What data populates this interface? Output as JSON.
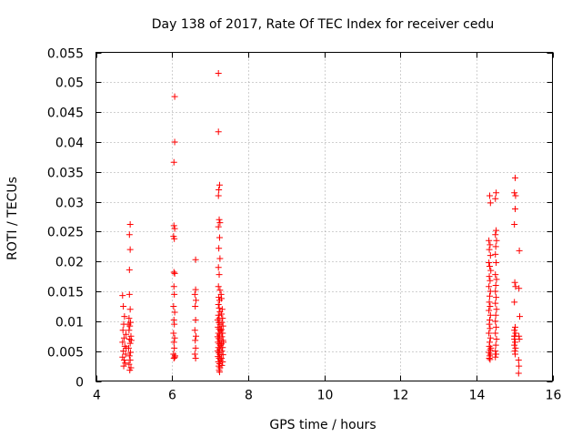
{
  "chart_data": {
    "type": "scatter",
    "title": "Day 138 of 2017, Rate Of TEC Index for receiver cedu",
    "xlabel": "GPS time / hours",
    "ylabel": "ROTI / TECUs",
    "xlim": [
      4,
      16
    ],
    "ylim": [
      0,
      0.055
    ],
    "xticks": [
      4,
      6,
      8,
      10,
      12,
      14,
      16
    ],
    "yticks": [
      0,
      0.005,
      0.01,
      0.015,
      0.02,
      0.025,
      0.03,
      0.035,
      0.04,
      0.045,
      0.05,
      0.055
    ],
    "xtick_labels": [
      "4",
      "6",
      "8",
      "10",
      "12",
      "14",
      "16"
    ],
    "ytick_labels": [
      "0",
      "0.005",
      "0.01",
      "0.015",
      "0.02",
      "0.025",
      "0.03",
      "0.035",
      "0.04",
      "0.045",
      "0.05",
      "0.055"
    ],
    "grid": true,
    "marker": "+",
    "color": "#ff0000",
    "series": [
      {
        "name": "ROTI",
        "points": [
          [
            4.7,
            0.0143
          ],
          [
            4.72,
            0.0125
          ],
          [
            4.75,
            0.0108
          ],
          [
            4.73,
            0.0095
          ],
          [
            4.71,
            0.0085
          ],
          [
            4.74,
            0.0072
          ],
          [
            4.7,
            0.0065
          ],
          [
            4.76,
            0.0058
          ],
          [
            4.72,
            0.005
          ],
          [
            4.78,
            0.0045
          ],
          [
            4.7,
            0.004
          ],
          [
            4.74,
            0.0035
          ],
          [
            4.77,
            0.003
          ],
          [
            4.73,
            0.0025
          ],
          [
            4.8,
            0.0055
          ],
          [
            4.79,
            0.0078
          ],
          [
            4.9,
            0.0262
          ],
          [
            4.88,
            0.0245
          ],
          [
            4.9,
            0.022
          ],
          [
            4.88,
            0.0186
          ],
          [
            4.88,
            0.0145
          ],
          [
            4.9,
            0.012
          ],
          [
            4.87,
            0.0105
          ],
          [
            4.91,
            0.0098
          ],
          [
            4.89,
            0.0092
          ],
          [
            4.87,
            0.0085
          ],
          [
            4.92,
            0.0075
          ],
          [
            4.88,
            0.007
          ],
          [
            4.9,
            0.0063
          ],
          [
            4.86,
            0.0055
          ],
          [
            4.91,
            0.0048
          ],
          [
            4.88,
            0.0042
          ],
          [
            4.9,
            0.0035
          ],
          [
            4.87,
            0.0028
          ],
          [
            4.92,
            0.0022
          ],
          [
            4.89,
            0.0018
          ],
          [
            4.85,
            0.0095
          ],
          [
            4.93,
            0.0068
          ],
          [
            6.07,
            0.0476
          ],
          [
            6.07,
            0.04
          ],
          [
            6.05,
            0.0366
          ],
          [
            6.05,
            0.026
          ],
          [
            6.07,
            0.0255
          ],
          [
            6.04,
            0.0242
          ],
          [
            6.06,
            0.0238
          ],
          [
            6.05,
            0.0182
          ],
          [
            6.07,
            0.018
          ],
          [
            6.05,
            0.0158
          ],
          [
            6.06,
            0.0145
          ],
          [
            6.04,
            0.0125
          ],
          [
            6.07,
            0.0115
          ],
          [
            6.05,
            0.0102
          ],
          [
            6.06,
            0.0095
          ],
          [
            6.04,
            0.008
          ],
          [
            6.07,
            0.0072
          ],
          [
            6.05,
            0.0065
          ],
          [
            6.06,
            0.0055
          ],
          [
            6.04,
            0.0045
          ],
          [
            6.07,
            0.004
          ],
          [
            6.05,
            0.0038
          ],
          [
            6.08,
            0.0042
          ],
          [
            6.62,
            0.0203
          ],
          [
            6.62,
            0.0153
          ],
          [
            6.6,
            0.0145
          ],
          [
            6.63,
            0.0135
          ],
          [
            6.61,
            0.0125
          ],
          [
            6.62,
            0.0102
          ],
          [
            6.6,
            0.0085
          ],
          [
            6.63,
            0.0075
          ],
          [
            6.61,
            0.0068
          ],
          [
            6.62,
            0.0055
          ],
          [
            6.6,
            0.0045
          ],
          [
            6.62,
            0.0038
          ],
          [
            7.22,
            0.0515
          ],
          [
            7.22,
            0.0417
          ],
          [
            7.25,
            0.0328
          ],
          [
            7.23,
            0.032
          ],
          [
            7.22,
            0.031
          ],
          [
            7.24,
            0.027
          ],
          [
            7.26,
            0.0265
          ],
          [
            7.22,
            0.0258
          ],
          [
            7.25,
            0.024
          ],
          [
            7.23,
            0.0222
          ],
          [
            7.26,
            0.0205
          ],
          [
            7.22,
            0.019
          ],
          [
            7.24,
            0.0178
          ],
          [
            7.22,
            0.0158
          ],
          [
            7.26,
            0.0152
          ],
          [
            7.23,
            0.014
          ],
          [
            7.25,
            0.0135
          ],
          [
            7.22,
            0.0128
          ],
          [
            7.24,
            0.0122
          ],
          [
            7.26,
            0.0116
          ],
          [
            7.22,
            0.011
          ],
          [
            7.24,
            0.0105
          ],
          [
            7.2,
            0.0102
          ],
          [
            7.23,
            0.0098
          ],
          [
            7.26,
            0.0095
          ],
          [
            7.21,
            0.009
          ],
          [
            7.24,
            0.0087
          ],
          [
            7.27,
            0.0084
          ],
          [
            7.22,
            0.008
          ],
          [
            7.25,
            0.0077
          ],
          [
            7.2,
            0.0074
          ],
          [
            7.23,
            0.0071
          ],
          [
            7.26,
            0.0068
          ],
          [
            7.21,
            0.0065
          ],
          [
            7.24,
            0.0062
          ],
          [
            7.27,
            0.0059
          ],
          [
            7.22,
            0.0056
          ],
          [
            7.25,
            0.0053
          ],
          [
            7.2,
            0.005
          ],
          [
            7.23,
            0.0047
          ],
          [
            7.26,
            0.0044
          ],
          [
            7.21,
            0.0041
          ],
          [
            7.24,
            0.0038
          ],
          [
            7.27,
            0.0035
          ],
          [
            7.22,
            0.0032
          ],
          [
            7.25,
            0.0029
          ],
          [
            7.23,
            0.0025
          ],
          [
            7.26,
            0.0022
          ],
          [
            7.24,
            0.0018
          ],
          [
            7.25,
            0.0015
          ],
          [
            7.3,
            0.0138
          ],
          [
            7.32,
            0.012
          ],
          [
            7.3,
            0.0112
          ],
          [
            7.33,
            0.0105
          ],
          [
            7.31,
            0.0098
          ],
          [
            7.34,
            0.0092
          ],
          [
            7.3,
            0.0086
          ],
          [
            7.33,
            0.008
          ],
          [
            7.31,
            0.0074
          ],
          [
            7.34,
            0.0068
          ],
          [
            7.3,
            0.0062
          ],
          [
            7.33,
            0.0056
          ],
          [
            7.31,
            0.005
          ],
          [
            7.34,
            0.0044
          ],
          [
            7.3,
            0.0038
          ],
          [
            7.33,
            0.0032
          ],
          [
            7.31,
            0.0026
          ],
          [
            7.29,
            0.0145
          ],
          [
            7.35,
            0.0065
          ],
          [
            14.35,
            0.031
          ],
          [
            14.37,
            0.0298
          ],
          [
            14.33,
            0.0235
          ],
          [
            14.36,
            0.0228
          ],
          [
            14.34,
            0.022
          ],
          [
            14.37,
            0.021
          ],
          [
            14.33,
            0.0198
          ],
          [
            14.35,
            0.0192
          ],
          [
            14.38,
            0.0185
          ],
          [
            14.34,
            0.0175
          ],
          [
            14.36,
            0.0168
          ],
          [
            14.33,
            0.0158
          ],
          [
            14.37,
            0.015
          ],
          [
            14.35,
            0.0142
          ],
          [
            14.34,
            0.0132
          ],
          [
            14.36,
            0.0125
          ],
          [
            14.33,
            0.0118
          ],
          [
            14.37,
            0.011
          ],
          [
            14.35,
            0.0102
          ],
          [
            14.34,
            0.0095
          ],
          [
            14.36,
            0.0088
          ],
          [
            14.33,
            0.008
          ],
          [
            14.37,
            0.0072
          ],
          [
            14.35,
            0.0065
          ],
          [
            14.34,
            0.0058
          ],
          [
            14.36,
            0.0052
          ],
          [
            14.33,
            0.0048
          ],
          [
            14.37,
            0.0045
          ],
          [
            14.35,
            0.0042
          ],
          [
            14.34,
            0.0038
          ],
          [
            14.36,
            0.0036
          ],
          [
            14.38,
            0.0055
          ],
          [
            14.52,
            0.0315
          ],
          [
            14.5,
            0.0305
          ],
          [
            14.52,
            0.0252
          ],
          [
            14.5,
            0.0245
          ],
          [
            14.53,
            0.0235
          ],
          [
            14.51,
            0.0225
          ],
          [
            14.5,
            0.0212
          ],
          [
            14.52,
            0.0198
          ],
          [
            14.5,
            0.0178
          ],
          [
            14.53,
            0.017
          ],
          [
            14.51,
            0.016
          ],
          [
            14.5,
            0.015
          ],
          [
            14.52,
            0.014
          ],
          [
            14.5,
            0.013
          ],
          [
            14.53,
            0.012
          ],
          [
            14.51,
            0.011
          ],
          [
            14.5,
            0.01
          ],
          [
            14.52,
            0.009
          ],
          [
            14.5,
            0.008
          ],
          [
            14.53,
            0.007
          ],
          [
            14.51,
            0.006
          ],
          [
            14.5,
            0.005
          ],
          [
            14.52,
            0.0045
          ],
          [
            14.5,
            0.004
          ],
          [
            15.02,
            0.034
          ],
          [
            15.0,
            0.0315
          ],
          [
            15.03,
            0.031
          ],
          [
            15.02,
            0.0288
          ],
          [
            15.0,
            0.0262
          ],
          [
            15.01,
            0.0165
          ],
          [
            15.03,
            0.0158
          ],
          [
            15.0,
            0.0132
          ],
          [
            15.02,
            0.009
          ],
          [
            15.0,
            0.0085
          ],
          [
            15.03,
            0.008
          ],
          [
            15.01,
            0.0075
          ],
          [
            15.0,
            0.007
          ],
          [
            15.02,
            0.0065
          ],
          [
            15.0,
            0.006
          ],
          [
            15.03,
            0.0055
          ],
          [
            15.01,
            0.005
          ],
          [
            15.02,
            0.0045
          ],
          [
            15.0,
            0.0075
          ],
          [
            15.13,
            0.0218
          ],
          [
            15.12,
            0.0155
          ],
          [
            15.14,
            0.0108
          ],
          [
            15.12,
            0.0075
          ],
          [
            15.13,
            0.007
          ],
          [
            15.11,
            0.0035
          ],
          [
            15.12,
            0.0025
          ],
          [
            15.11,
            0.0013
          ]
        ]
      }
    ]
  }
}
